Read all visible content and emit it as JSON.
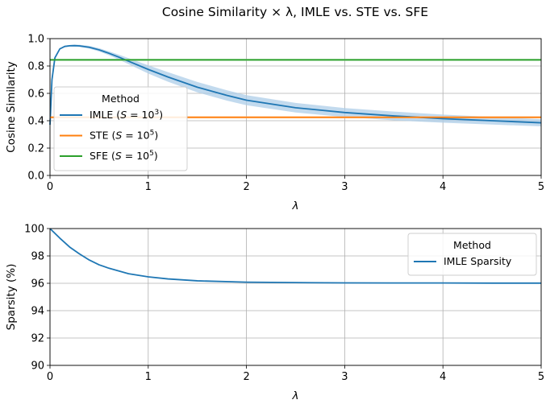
{
  "figure": {
    "title": "Cosine Similarity × λ, IMLE vs. STE vs. SFE"
  },
  "chart_data": [
    {
      "type": "line",
      "xlabel": "λ",
      "ylabel": "Cosine Similarity",
      "xlim": [
        0,
        5
      ],
      "ylim": [
        0.0,
        1.0
      ],
      "xticks": [
        "0",
        "1",
        "2",
        "3",
        "4",
        "5"
      ],
      "yticks": [
        "0.0",
        "0.2",
        "0.4",
        "0.6",
        "0.8",
        "1.0"
      ],
      "grid": true,
      "legend": {
        "title": "Method",
        "placement": "center-left"
      },
      "series": [
        {
          "name": "IMLE",
          "name_base": "IMLE (",
          "name_var": "S",
          "name_eq": " = 10",
          "name_exp": "3",
          "name_close": ")",
          "color": "#1f77b4",
          "band_color": "#aecde8",
          "x": [
            0.0,
            0.02,
            0.05,
            0.1,
            0.15,
            0.2,
            0.25,
            0.3,
            0.4,
            0.5,
            0.6,
            0.7,
            0.8,
            1.0,
            1.2,
            1.5,
            1.8,
            2.0,
            2.5,
            3.0,
            3.5,
            4.0,
            4.5,
            5.0
          ],
          "y": [
            0.37,
            0.7,
            0.86,
            0.925,
            0.943,
            0.948,
            0.949,
            0.947,
            0.937,
            0.918,
            0.893,
            0.865,
            0.835,
            0.775,
            0.72,
            0.645,
            0.585,
            0.55,
            0.495,
            0.46,
            0.435,
            0.415,
            0.4,
            0.385
          ],
          "band": [
            0.0,
            0.0,
            0.005,
            0.005,
            0.005,
            0.006,
            0.007,
            0.008,
            0.01,
            0.012,
            0.014,
            0.018,
            0.022,
            0.03,
            0.035,
            0.038,
            0.038,
            0.037,
            0.035,
            0.033,
            0.032,
            0.03,
            0.028,
            0.026
          ]
        },
        {
          "name": "STE",
          "name_base": "STE (",
          "name_var": "S",
          "name_eq": " = 10",
          "name_exp": "5",
          "name_close": ")",
          "color": "#ff7f0e",
          "band_color": "#ffc999",
          "x": [
            0,
            5
          ],
          "y": [
            0.425,
            0.425
          ],
          "band": [
            0.008,
            0.008
          ]
        },
        {
          "name": "SFE",
          "name_base": "SFE (",
          "name_var": "S",
          "name_eq": " = 10",
          "name_exp": "5",
          "name_close": ")",
          "color": "#2ca02c",
          "band_color": "#a6d9a6",
          "x": [
            0,
            5
          ],
          "y": [
            0.845,
            0.845
          ],
          "band": [
            0.008,
            0.008
          ]
        }
      ]
    },
    {
      "type": "line",
      "xlabel": "λ",
      "ylabel": "Sparsity (%)",
      "xlim": [
        0,
        5
      ],
      "ylim": [
        90,
        100
      ],
      "xticks": [
        "0",
        "1",
        "2",
        "3",
        "4",
        "5"
      ],
      "yticks": [
        "90",
        "92",
        "94",
        "96",
        "98",
        "100"
      ],
      "grid": true,
      "legend": {
        "title": "Method",
        "placement": "top-right"
      },
      "series": [
        {
          "name": "IMLE Sparsity",
          "color": "#1f77b4",
          "x": [
            0.0,
            0.1,
            0.2,
            0.3,
            0.4,
            0.5,
            0.6,
            0.8,
            1.0,
            1.2,
            1.5,
            2.0,
            2.5,
            3.0,
            3.5,
            4.0,
            4.5,
            5.0
          ],
          "y": [
            100.0,
            99.3,
            98.65,
            98.15,
            97.7,
            97.35,
            97.1,
            96.7,
            96.47,
            96.32,
            96.18,
            96.08,
            96.05,
            96.03,
            96.02,
            96.02,
            96.01,
            96.01
          ]
        }
      ]
    }
  ]
}
